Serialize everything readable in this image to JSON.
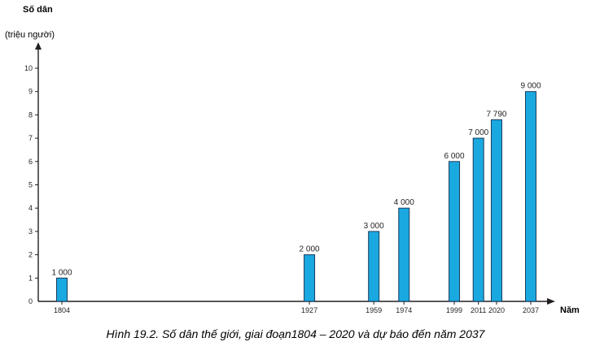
{
  "chart_data": {
    "type": "bar",
    "ylabel": "Số dân",
    "yunit": "(triệu người)",
    "xlabel": "Năm",
    "ylim": [
      0,
      10
    ],
    "yticks": [
      "0",
      "1",
      "2",
      "3",
      "4",
      "5",
      "6",
      "7",
      "8",
      "9",
      "10"
    ],
    "grid": false,
    "x": [
      1804,
      1927,
      1959,
      1974,
      1999,
      2011,
      2020,
      2037
    ],
    "values": [
      1,
      2,
      3,
      4,
      6,
      7,
      7.79,
      9
    ],
    "value_labels": [
      "1 000",
      "2 000",
      "3 000",
      "4 000",
      "6 000",
      "7 000",
      "7 790",
      "9 000"
    ],
    "caption": "Hình 19.2. Số dân thế giới, giai đoạn1804 – 2020 và dự báo đến năm 2037",
    "colors": {
      "bar_fill": "#1aa8e0",
      "bar_stroke": "#1a3b5c",
      "axis": "#231f20",
      "text": "#231f20"
    }
  }
}
